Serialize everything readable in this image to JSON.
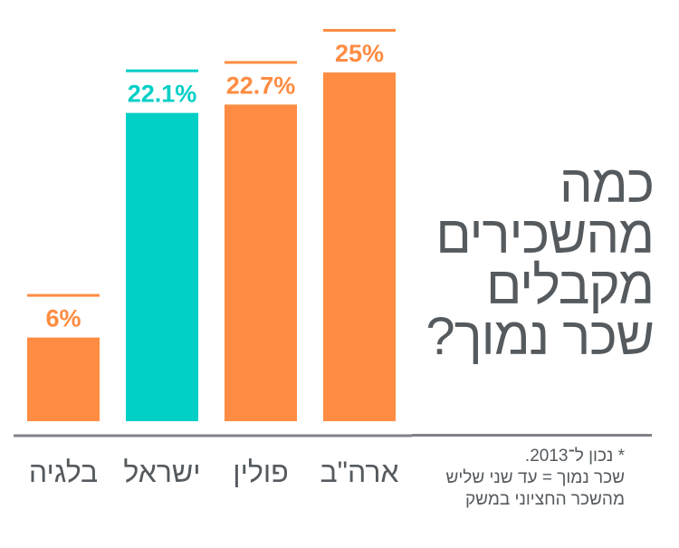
{
  "title_lines": [
    "כמה",
    "מהשכירים",
    "מקבלים",
    "שכר נמוך?"
  ],
  "footnote_lines": [
    "* נכון ל־2013.",
    "שכר נמוך = עד שני שליש",
    "מהשכר החציוני במשק"
  ],
  "colors": {
    "orange": "#ff8c42",
    "teal": "#00cfc6",
    "axis": "#7f8287",
    "label": "#555a5e"
  },
  "chart_data": {
    "type": "bar",
    "categories": [
      "בלגיה",
      "ישראל",
      "פולין",
      "ארה\"ב"
    ],
    "values": [
      6,
      22.1,
      22.7,
      25
    ],
    "value_labels": [
      "6%",
      "22.1%",
      "22.7%",
      "25%"
    ],
    "highlight": [
      "orange",
      "teal",
      "orange",
      "orange"
    ],
    "ylim": [
      0,
      25
    ]
  }
}
